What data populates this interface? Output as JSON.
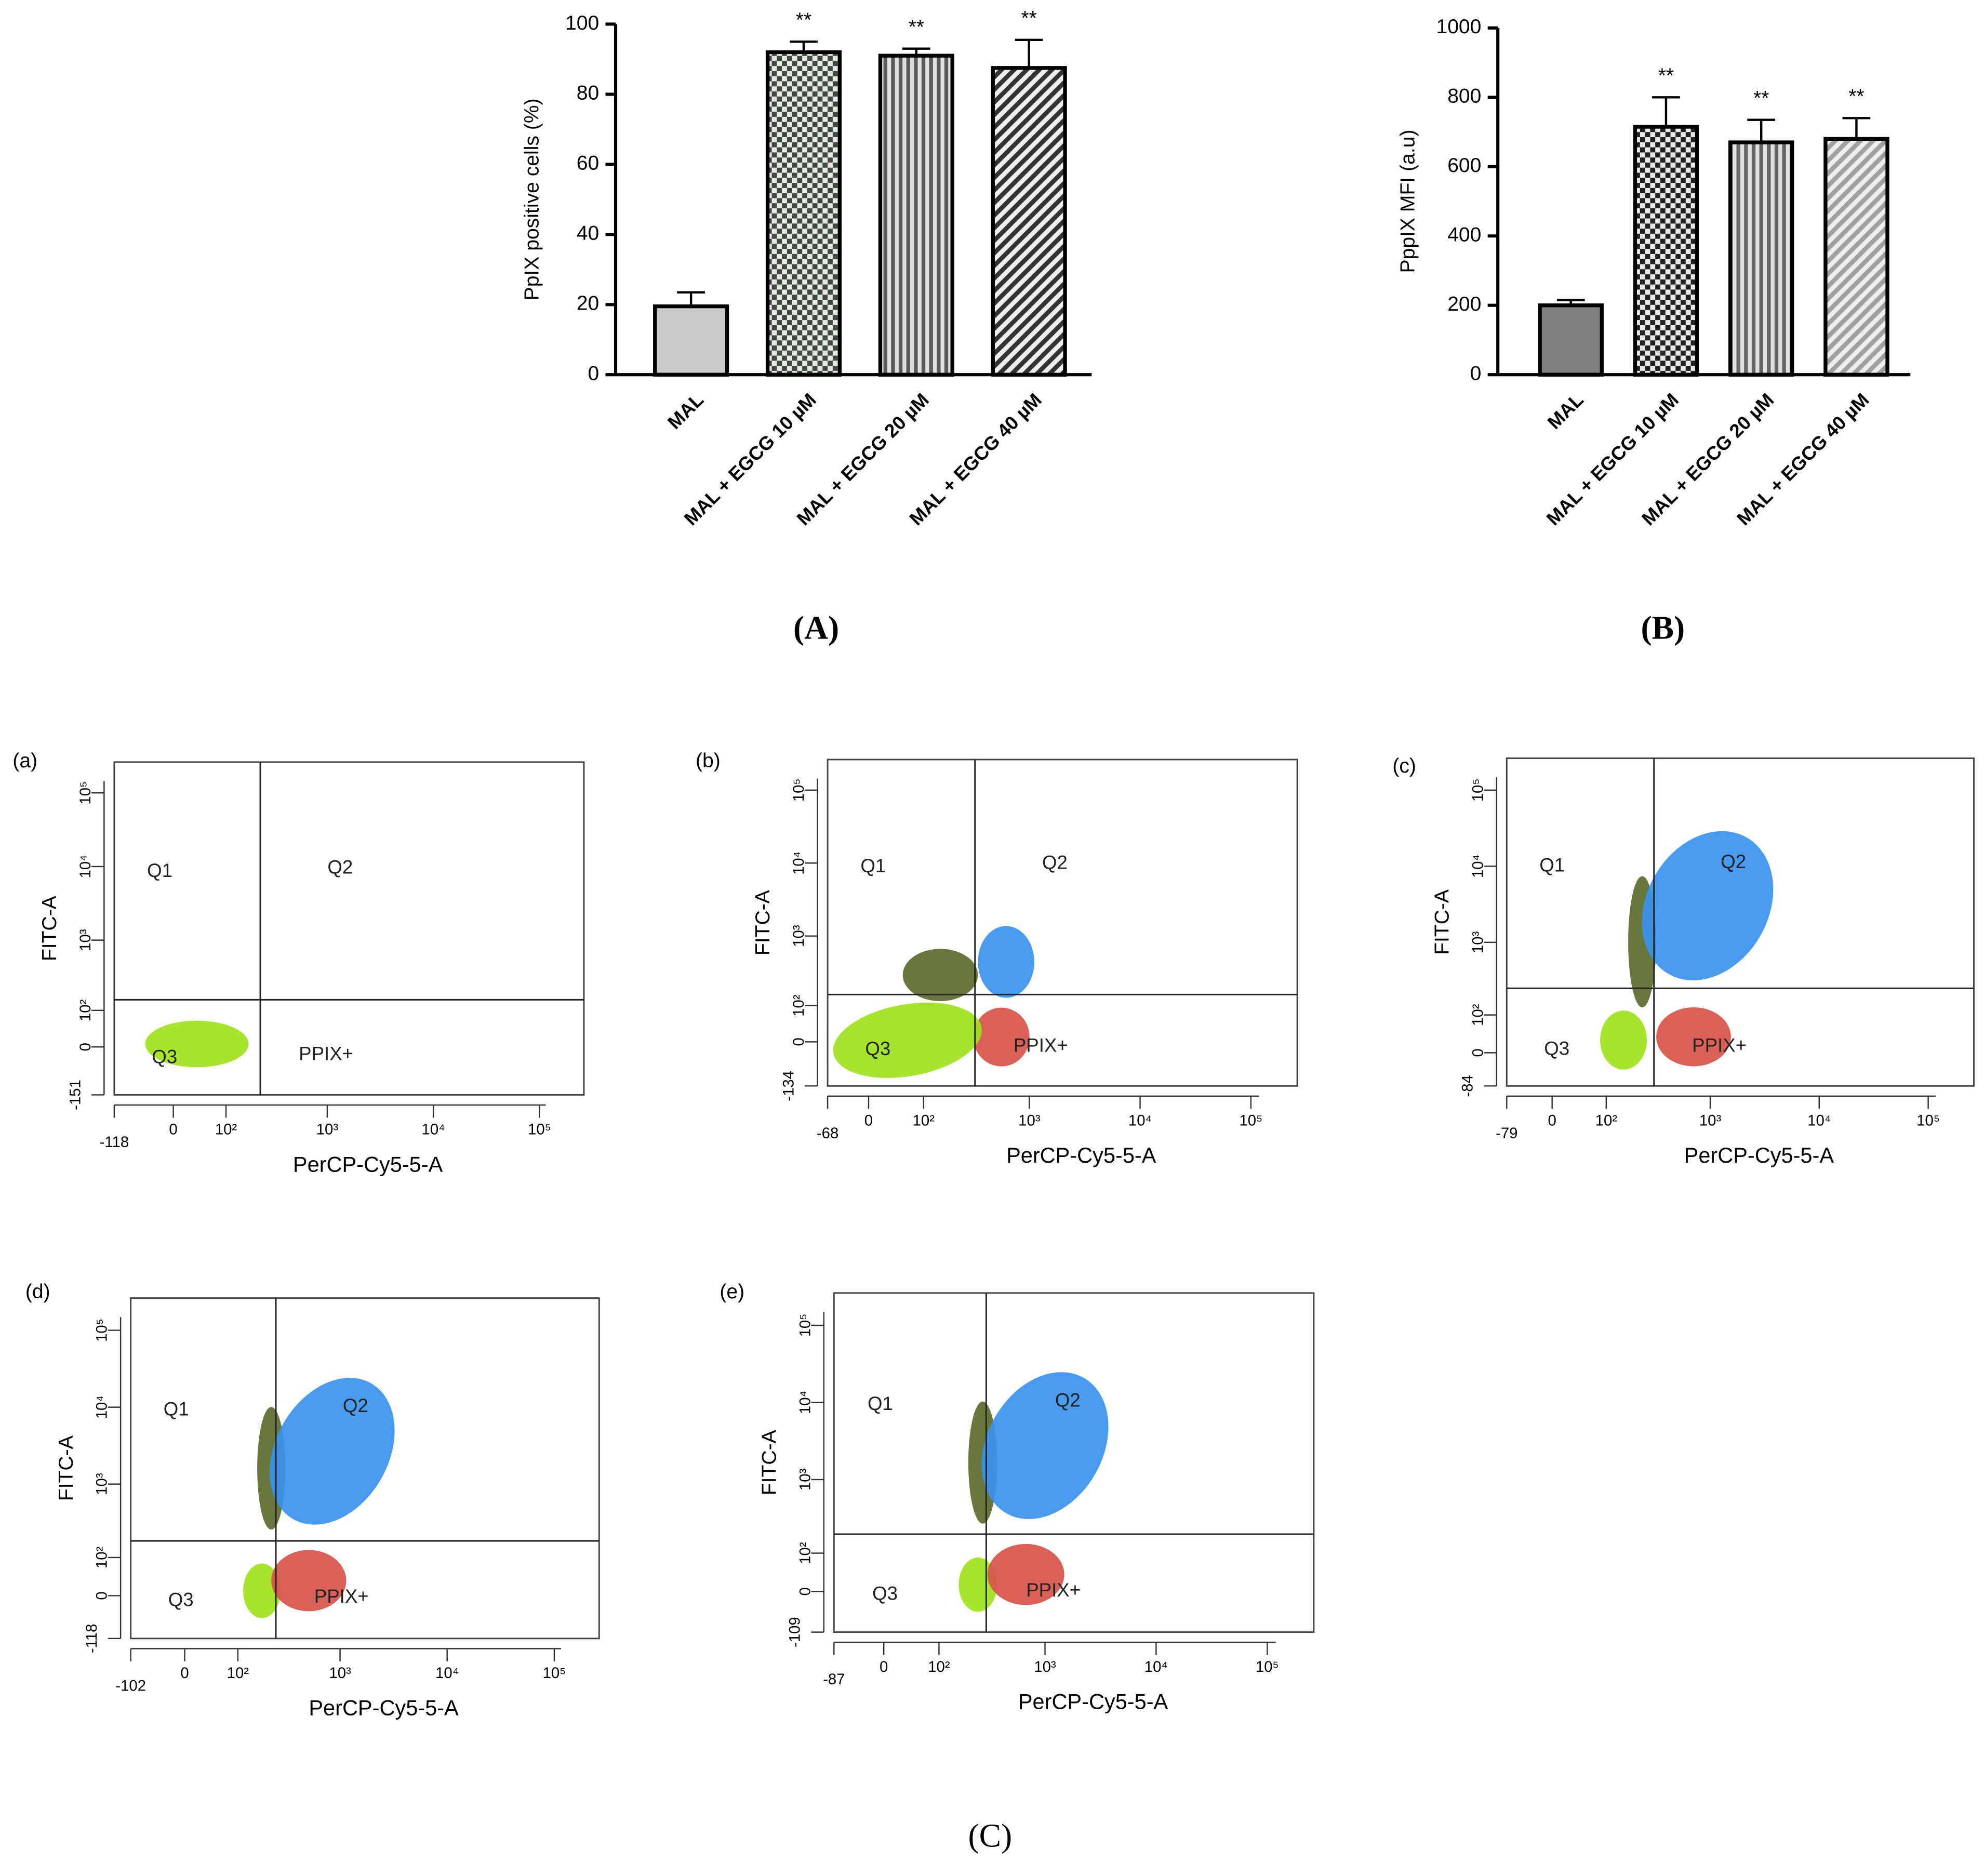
{
  "chart_data": [
    {
      "type": "bar",
      "panel_label": "(A)",
      "ylabel": "PpIX  positive cells (%)",
      "categories": [
        "MAL",
        "MAL + EGCG 10 µM",
        "MAL + EGCG 20 µM",
        "MAL + EGCG 40 µM"
      ],
      "values": [
        19.5,
        92,
        91,
        87.5
      ],
      "errors": [
        4,
        3,
        2,
        8
      ],
      "annotations": [
        null,
        "**",
        "**",
        "**"
      ],
      "colors": [
        "#cccccc",
        "#3d4a3d",
        "#5a5a5a",
        "#333333"
      ],
      "patterns": [
        "solid",
        "checker",
        "vertical",
        "diagonal"
      ],
      "ylim": [
        0,
        100
      ],
      "yticks": [
        0,
        20,
        40,
        60,
        80,
        100
      ]
    },
    {
      "type": "bar",
      "panel_label": "(B)",
      "ylabel": "PppIX MFI (a.u)",
      "categories": [
        "MAL",
        "MAL + EGCG 10 µM",
        "MAL + EGCG 20 µM",
        "MAL + EGCG 40 µM"
      ],
      "values": [
        200,
        715,
        670,
        680
      ],
      "errors": [
        15,
        85,
        65,
        60
      ],
      "annotations": [
        null,
        "**",
        "**",
        "**"
      ],
      "colors": [
        "#808080",
        "#222222",
        "#666666",
        "#a0a0a0"
      ],
      "patterns": [
        "solid",
        "checker",
        "vertical",
        "diagonal"
      ],
      "ylim": [
        0,
        1000
      ],
      "yticks": [
        0,
        200,
        400,
        600,
        800,
        1000
      ]
    },
    {
      "type": "flow",
      "panel_label": "(a)",
      "xlabel": "PerCP-Cy5-5-A",
      "ylabel": "FITC-A",
      "xlim": [
        -118,
        262144
      ],
      "ylim": [
        -151,
        262144
      ],
      "xticks": [
        -118,
        0,
        {
          "value": 100,
          "label": "10²"
        },
        {
          "value": 1000,
          "label": "10³"
        },
        {
          "value": 10000,
          "label": "10⁴"
        },
        {
          "value": 100000,
          "label": "10⁵"
        }
      ],
      "yticks": [
        -151,
        0,
        {
          "value": 100,
          "label": "10²"
        },
        {
          "value": 1000,
          "label": "10³"
        },
        {
          "value": 10000,
          "label": "10⁴"
        },
        {
          "value": 100000,
          "label": "10⁵"
        }
      ],
      "quadrant_gate": [
        229,
        147
      ],
      "quadrant_labels": [
        "Q1",
        "Q2",
        "Q3",
        "PPIX+"
      ],
      "colors": {
        "Q1": "#5a6b2e",
        "Q2": "#3a92ee",
        "Q3": "#9ee21c",
        "PPIX+": "#d8534a"
      }
    },
    {
      "type": "flow",
      "panel_label": "(b)",
      "xlabel": "PerCP-Cy5-5-A",
      "ylabel": "FITC-A",
      "xlim": [
        -68,
        262144
      ],
      "ylim": [
        -134,
        262144
      ],
      "xticks": [
        -68,
        0,
        {
          "value": 100,
          "label": "10²"
        },
        {
          "value": 1000,
          "label": "10³"
        },
        {
          "value": 10000,
          "label": "10⁴"
        },
        {
          "value": 100000,
          "label": "10⁵"
        }
      ],
      "yticks": [
        -134,
        0,
        {
          "value": 100,
          "label": "10²"
        },
        {
          "value": 1000,
          "label": "10³"
        },
        {
          "value": 10000,
          "label": "10⁴"
        },
        {
          "value": 100000,
          "label": "10⁵"
        }
      ],
      "quadrant_gate": [
        320,
        150
      ],
      "quadrant_labels": [
        "Q1",
        "Q2",
        "Q3",
        "PPIX+"
      ],
      "colors": {
        "Q1": "#5a6b2e",
        "Q2": "#3a92ee",
        "Q3": "#9ee21c",
        "PPIX+": "#d8534a"
      }
    },
    {
      "type": "flow",
      "panel_label": "(c)",
      "xlabel": "PerCP-Cy5-5-A",
      "ylabel": "FITC-A",
      "xlim": [
        -79,
        262144
      ],
      "ylim": [
        -84,
        262144
      ],
      "xticks": [
        -79,
        0,
        {
          "value": 100,
          "label": "10²"
        },
        {
          "value": 1000,
          "label": "10³"
        },
        {
          "value": 10000,
          "label": "10⁴"
        },
        {
          "value": 100000,
          "label": "10⁵"
        }
      ],
      "yticks": [
        -84,
        0,
        {
          "value": 100,
          "label": "10²"
        },
        {
          "value": 1000,
          "label": "10³"
        },
        {
          "value": 10000,
          "label": "10⁴"
        },
        {
          "value": 100000,
          "label": "10⁵"
        }
      ],
      "quadrant_gate": [
        301,
        244
      ],
      "quadrant_labels": [
        "Q1",
        "Q2",
        "Q3",
        "PPIX+"
      ],
      "colors": {
        "Q1": "#5a6b2e",
        "Q2": "#3a92ee",
        "Q3": "#9ee21c",
        "PPIX+": "#d8534a"
      }
    },
    {
      "type": "flow",
      "panel_label": "(d)",
      "xlabel": "PerCP-Cy5-5-A",
      "ylabel": "FITC-A",
      "xlim": [
        -102,
        262144
      ],
      "ylim": [
        -118,
        262144
      ],
      "xticks": [
        -102,
        0,
        {
          "value": 100,
          "label": "10²"
        },
        {
          "value": 1000,
          "label": "10³"
        },
        {
          "value": 10000,
          "label": "10⁴"
        },
        {
          "value": 100000,
          "label": "10⁵"
        }
      ],
      "yticks": [
        -118,
        0,
        {
          "value": 100,
          "label": "10²"
        },
        {
          "value": 1000,
          "label": "10³"
        },
        {
          "value": 10000,
          "label": "10⁴"
        },
        {
          "value": 100000,
          "label": "10⁵"
        }
      ],
      "quadrant_gate": [
        247,
        176
      ],
      "quadrant_labels": [
        "Q1",
        "Q2",
        "Q3",
        "PPIX+"
      ],
      "colors": {
        "Q1": "#5a6b2e",
        "Q2": "#3a92ee",
        "Q3": "#9ee21c",
        "PPIX+": "#d8534a"
      }
    },
    {
      "type": "flow",
      "panel_label": "(e)",
      "xlabel": "PerCP-Cy5-5-A",
      "ylabel": "FITC-A",
      "xlim": [
        -87,
        262144
      ],
      "ylim": [
        -109,
        262144
      ],
      "xticks": [
        -87,
        0,
        {
          "value": 100,
          "label": "10²"
        },
        {
          "value": 1000,
          "label": "10³"
        },
        {
          "value": 10000,
          "label": "10⁴"
        },
        {
          "value": 100000,
          "label": "10⁵"
        }
      ],
      "yticks": [
        -109,
        0,
        {
          "value": 100,
          "label": "10²"
        },
        {
          "value": 1000,
          "label": "10³"
        },
        {
          "value": 10000,
          "label": "10⁴"
        },
        {
          "value": 100000,
          "label": "10⁵"
        }
      ],
      "quadrant_gate": [
        292,
        190
      ],
      "quadrant_labels": [
        "Q1",
        "Q2",
        "Q3",
        "PPIX+"
      ],
      "colors": {
        "Q1": "#5a6b2e",
        "Q2": "#3a92ee",
        "Q3": "#9ee21c",
        "PPIX+": "#d8534a"
      }
    }
  ],
  "figure_label": "(C)"
}
